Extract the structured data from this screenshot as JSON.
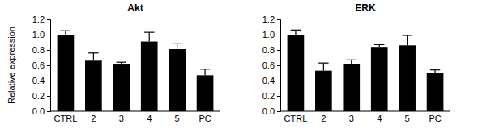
{
  "chart_data": [
    {
      "type": "bar",
      "title": "Akt",
      "y_label": "Relative expression",
      "categories": [
        "CTRL",
        "2",
        "3",
        "4",
        "5",
        "PC"
      ],
      "values": [
        1.0,
        0.66,
        0.61,
        0.91,
        0.81,
        0.47
      ],
      "errors": [
        0.05,
        0.1,
        0.03,
        0.12,
        0.07,
        0.08
      ],
      "color": "#000000",
      "ylim": [
        0,
        1.2
      ],
      "yticks": [
        {
          "value": 0,
          "label": "0.0"
        },
        0.2,
        0.4,
        0.6,
        0.8,
        {
          "value": 1,
          "label": "1.0"
        },
        1.2
      ]
    },
    {
      "type": "bar",
      "title": "ERK",
      "categories": [
        "CTRL",
        "2",
        "3",
        "4",
        "5",
        "PC"
      ],
      "values": [
        1.0,
        0.53,
        0.62,
        0.84,
        0.86,
        0.5
      ],
      "errors": [
        0.06,
        0.1,
        0.05,
        0.03,
        0.13,
        0.04
      ],
      "color": "#000000",
      "ylim": [
        0,
        1.2
      ],
      "yticks": [
        {
          "value": 0,
          "label": "0.0"
        },
        0.2,
        0.4,
        0.6,
        0.8,
        {
          "value": 1,
          "label": "1.0"
        },
        1.2
      ]
    }
  ]
}
